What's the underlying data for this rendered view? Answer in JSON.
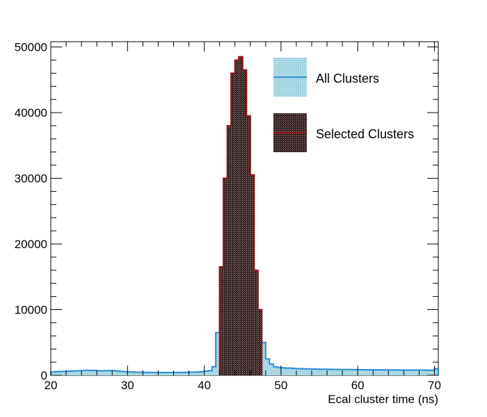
{
  "chart_data": {
    "type": "histogram",
    "title": "",
    "xlabel": "Ecal cluster time (ns)",
    "ylabel": "",
    "xlim": [
      20,
      70.5
    ],
    "ylim": [
      0,
      50800
    ],
    "bin_width": 0.5,
    "x_major_ticks": [
      20,
      30,
      40,
      50,
      60,
      70
    ],
    "y_major_ticks": [
      0,
      10000,
      20000,
      30000,
      40000,
      50000
    ],
    "x_tick_labels": [
      "20",
      "30",
      "40",
      "50",
      "60",
      "70"
    ],
    "y_tick_labels": [
      "0",
      "10000",
      "20000",
      "30000",
      "40000",
      "50000"
    ],
    "grid": false,
    "legend_position": "top-right",
    "series": [
      {
        "name": "All Clusters",
        "color": "#2b8ad6",
        "fill_color": "#9dd3dd",
        "bin_edges": [
          20,
          20.5,
          21,
          21.5,
          22,
          22.5,
          23,
          23.5,
          24,
          24.5,
          25,
          25.5,
          26,
          26.5,
          27,
          27.5,
          28,
          28.5,
          29,
          29.5,
          30,
          30.5,
          31,
          31.5,
          32,
          32.5,
          33,
          33.5,
          34,
          34.5,
          35,
          35.5,
          36,
          36.5,
          37,
          37.5,
          38,
          38.5,
          39,
          39.5,
          40,
          40.5,
          41,
          41.5,
          42,
          42.5,
          43,
          43.5,
          44,
          44.5,
          45,
          45.5,
          46,
          46.5,
          47,
          47.5,
          48,
          48.5,
          49,
          49.5,
          50,
          50.5,
          51,
          51.5,
          52,
          52.5,
          53,
          53.5,
          54,
          54.5,
          55,
          55.5,
          56,
          56.5,
          57,
          57.5,
          58,
          58.5,
          59,
          59.5,
          60,
          60.5,
          61,
          61.5,
          62,
          62.5,
          63,
          63.5,
          64,
          64.5,
          65,
          65.5,
          66,
          66.5,
          67,
          67.5,
          68,
          68.5,
          69,
          69.5,
          70,
          70.5
        ],
        "values": [
          500,
          550,
          580,
          600,
          620,
          650,
          680,
          700,
          720,
          750,
          760,
          740,
          700,
          680,
          700,
          720,
          700,
          650,
          600,
          560,
          520,
          500,
          480,
          470,
          460,
          450,
          440,
          430,
          430,
          420,
          420,
          420,
          430,
          440,
          450,
          460,
          470,
          480,
          500,
          560,
          650,
          700,
          1300,
          6500,
          16500,
          30000,
          38000,
          46000,
          48000,
          48500,
          46500,
          39500,
          30500,
          16000,
          10000,
          5000,
          2500,
          1700,
          1300,
          1200,
          1150,
          1100,
          1100,
          1050,
          1000,
          1000,
          980,
          960,
          950,
          940,
          930,
          920,
          910,
          900,
          900,
          890,
          880,
          880,
          870,
          860,
          860,
          850,
          850,
          840,
          840,
          830,
          830,
          820,
          820,
          820,
          810,
          810,
          800,
          800,
          800,
          800,
          790,
          790,
          780,
          780,
          1000
        ]
      },
      {
        "name": "Selected Clusters",
        "color": "#a01010",
        "fill_color": "#4a2a2a",
        "bin_edges": [
          42,
          42.5,
          43,
          43.5,
          44,
          44.5,
          45,
          45.5,
          46,
          46.5,
          47,
          47.5
        ],
        "values": [
          16500,
          30000,
          38000,
          46000,
          48000,
          48500,
          46500,
          39500,
          30500,
          16000,
          10000
        ]
      }
    ]
  }
}
